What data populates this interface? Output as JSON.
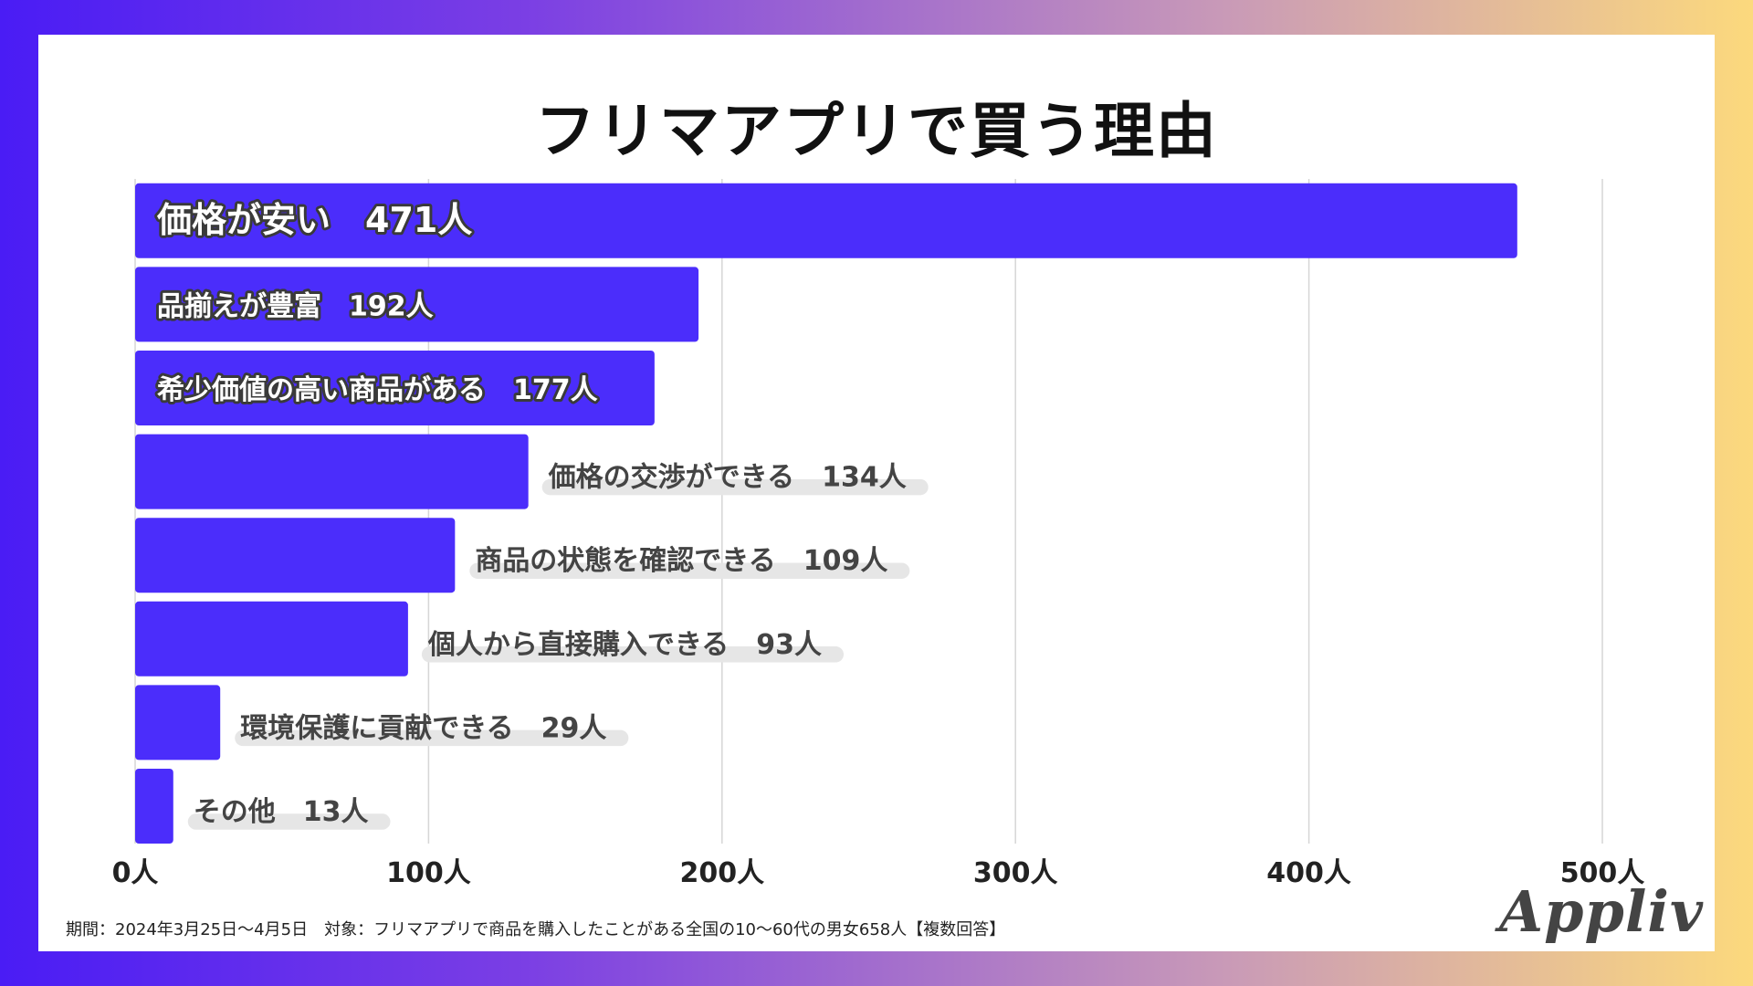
{
  "title": "フリマアプリで買う理由",
  "footnote": "期間：2024年3月25日〜4月5日　対象：フリマアプリで商品を購入したことがある全国の10〜60代の男女658人【複数回答】",
  "logo": "Appliv",
  "colors": {
    "bar": "#4b2dfb",
    "text_dark": "#111111",
    "grid": "#d6d6d6"
  },
  "chart_data": {
    "type": "bar",
    "orientation": "horizontal",
    "title": "フリマアプリで買う理由",
    "unit": "人",
    "categories": [
      "価格が安い",
      "品揃えが豊富",
      "希少価値の高い商品がある",
      "価格の交渉ができる",
      "商品の状態を確認できる",
      "個人から直接購入できる",
      "環境保護に貢献できる",
      "その他"
    ],
    "values": [
      471,
      192,
      177,
      134,
      109,
      93,
      29,
      13
    ],
    "bar_labels": [
      "価格が安い　471人",
      "品揃えが豊富　192人",
      "希少価値の高い商品がある　177人",
      "価格の交渉ができる　134人",
      "商品の状態を確認できる　109人",
      "個人から直接購入できる　93人",
      "環境保護に貢献できる　29人",
      "その他　13人"
    ],
    "label_inside": [
      true,
      true,
      true,
      false,
      false,
      false,
      false,
      false
    ],
    "xlim": [
      0,
      500
    ],
    "ticks": [
      0,
      100,
      200,
      300,
      400,
      500
    ],
    "tick_labels": [
      "0人",
      "100人",
      "200人",
      "300人",
      "400人",
      "500人"
    ],
    "grid": true
  }
}
